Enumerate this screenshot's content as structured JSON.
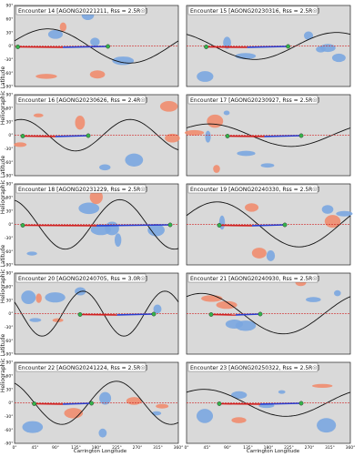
{
  "figure": {
    "y_axis_title": "Heliographic Latitude",
    "x_axis_title": "Carrington Longitude",
    "x_ticks": [
      "0°",
      "45°",
      "90°",
      "135°",
      "180°",
      "225°",
      "270°",
      "315°",
      "360°"
    ],
    "y_ticks": [
      "90°",
      "60°",
      "30°",
      "0°",
      "-30°",
      "-60°",
      "-90°"
    ],
    "colors": {
      "plot_bg": "#d9d9d9",
      "positive_ch": "#f08c6e",
      "negative_ch": "#7aa6e0",
      "neutral_line": "#111111",
      "trajectory_blue": "#2a3fd0",
      "trajectory_red": "#d02020",
      "sc_marker": "#35b34a"
    }
  },
  "panels": [
    {
      "encounter": "Encounter 14",
      "agong": "AGONG20221211",
      "rss": "2.5",
      "phase": 0.3,
      "amp": 38,
      "freq": 1.0,
      "tpos": 0.02,
      "tlen": 0.55
    },
    {
      "encounter": "Encounter 15",
      "agong": "AGONG20230316",
      "rss": "2.5",
      "phase": 2.1,
      "amp": 30,
      "freq": 1.0,
      "tpos": 0.12,
      "tlen": 0.5
    },
    {
      "encounter": "Encounter 16",
      "agong": "AGONG20230626",
      "rss": "2.4",
      "phase": 1.2,
      "amp": 35,
      "freq": 1.5,
      "tpos": 0.05,
      "tlen": 0.4
    },
    {
      "encounter": "Encounter 17",
      "agong": "AGONG20230927",
      "rss": "2.5",
      "phase": 0.7,
      "amp": 25,
      "freq": 1.0,
      "tpos": 0.25,
      "tlen": 0.45
    },
    {
      "encounter": "Encounter 18",
      "agong": "AGONG20231229",
      "rss": "2.5",
      "phase": 1.8,
      "amp": 55,
      "freq": 1.5,
      "tpos": 0.05,
      "tlen": 0.9
    },
    {
      "encounter": "Encounter 19",
      "agong": "AGONG20240330",
      "rss": "2.5",
      "phase": 0.4,
      "amp": 50,
      "freq": 1.0,
      "tpos": 0.2,
      "tlen": 0.4
    },
    {
      "encounter": "Encounter 20",
      "agong": "AGONG20240705",
      "rss": "3.0",
      "phase": 2.6,
      "amp": 50,
      "freq": 2.0,
      "tpos": 0.4,
      "tlen": 0.45
    },
    {
      "encounter": "Encounter 21",
      "agong": "AGONG20240930",
      "rss": "2.5",
      "phase": 1.0,
      "amp": 45,
      "freq": 1.0,
      "tpos": 0.15,
      "tlen": 0.3
    },
    {
      "encounter": "Encounter 22",
      "agong": "AGONG20241224",
      "rss": "2.5",
      "phase": 2.0,
      "amp": 48,
      "freq": 1.5,
      "tpos": 0.12,
      "tlen": 0.35
    },
    {
      "encounter": "Encounter 23",
      "agong": "AGONG20250322",
      "rss": "2.5",
      "phase": 0.9,
      "amp": 30,
      "freq": 1.0,
      "tpos": 0.2,
      "tlen": 0.5
    }
  ]
}
